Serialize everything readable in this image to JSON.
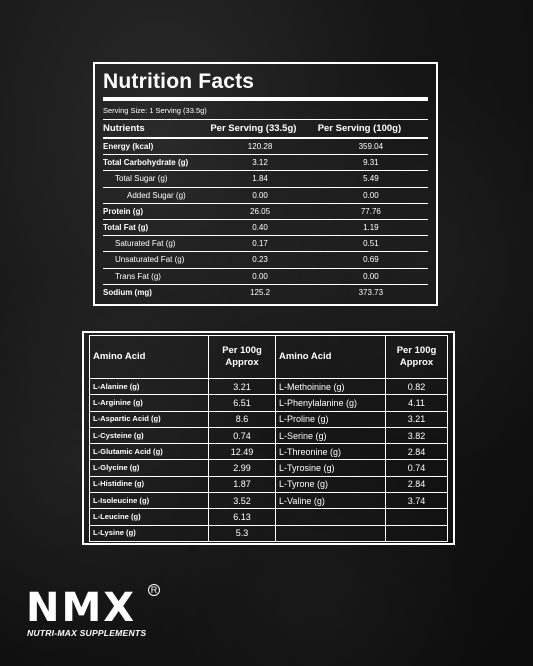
{
  "nutrition": {
    "title": "Nutrition Facts",
    "serving_size": "Serving Size: 1 Serving (33.5g)",
    "headers": [
      "Nutrients",
      "Per Serving (33.5g)",
      "Per Serving (100g)"
    ],
    "rows": [
      {
        "name": "Energy (kcal)",
        "per_serving": "120.28",
        "per_100g": "359.04"
      },
      {
        "name": "Total Carbohydrate (g)",
        "per_serving": "3.12",
        "per_100g": "9.31"
      },
      {
        "name": "Total Sugar (g)",
        "per_serving": "1.84",
        "per_100g": "5.49"
      },
      {
        "name": "Added Sugar (g)",
        "per_serving": "0.00",
        "per_100g": "0.00"
      },
      {
        "name": "Protein (g)",
        "per_serving": "26.05",
        "per_100g": "77.76"
      },
      {
        "name": "Total Fat (g)",
        "per_serving": "0.40",
        "per_100g": "1.19"
      },
      {
        "name": "Saturated Fat (g)",
        "per_serving": "0.17",
        "per_100g": "0.51"
      },
      {
        "name": "Unsaturated Fat (g)",
        "per_serving": "0.23",
        "per_100g": "0.69"
      },
      {
        "name": "Trans Fat (g)",
        "per_serving": "0.00",
        "per_100g": "0.00"
      },
      {
        "name": "Sodium (mg)",
        "per_serving": "125.2",
        "per_100g": "373.73"
      }
    ]
  },
  "amino": {
    "header_left": "Amino Acid",
    "header_value": "Per 100g Approx",
    "header_right": "Amino Acid",
    "header_value2": "Per 100g Approx",
    "rows": [
      {
        "left": "L-Alanine (g)",
        "lval": "3.21",
        "right": "L-Methoinine (g)",
        "rval": "0.82"
      },
      {
        "left": "L-Arginine (g)",
        "lval": "6.51",
        "right": "L-Phenylalanine (g)",
        "rval": "4.11"
      },
      {
        "left": "L-Aspartic Acid (g)",
        "lval": "8.6",
        "right": "L-Proline (g)",
        "rval": "3.21"
      },
      {
        "left": "L-Cysteine (g)",
        "lval": "0.74",
        "right": "L-Serine (g)",
        "rval": "3.82"
      },
      {
        "left": "L-Glutamic Acid (g)",
        "lval": "12.49",
        "right": "L-Threonine (g)",
        "rval": "2.84"
      },
      {
        "left": "L-Glycine (g)",
        "lval": "2.99",
        "right": "L-Tyrosine (g)",
        "rval": "0.74"
      },
      {
        "left": "L-Histidine (g)",
        "lval": "1.87",
        "right": "L-Tyrone (g)",
        "rval": "2.84"
      },
      {
        "left": "L-Isoleucine (g)",
        "lval": "3.52",
        "right": "L-Valine (g)",
        "rval": "3.74"
      },
      {
        "left": "L-Leucine (g)",
        "lval": "6.13",
        "right": "",
        "rval": ""
      },
      {
        "left": "L-Lysine (g)",
        "lval": "5.3",
        "right": "",
        "rval": ""
      }
    ]
  },
  "brand": {
    "logo": "NMX",
    "registered": "R",
    "tagline": "NUTRI-MAX SUPPLEMENTS"
  }
}
